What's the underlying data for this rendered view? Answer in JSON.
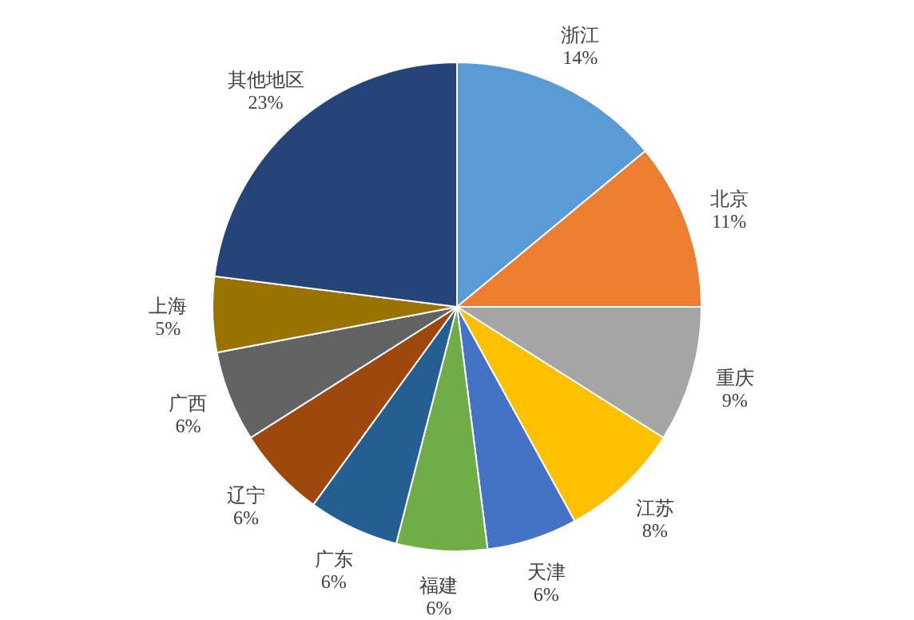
{
  "chart_data": {
    "type": "pie",
    "categories": [
      "浙江",
      "北京",
      "重庆",
      "江苏",
      "天津",
      "福建",
      "广东",
      "辽宁",
      "广西",
      "上海",
      "其他地区"
    ],
    "values": [
      14,
      11,
      9,
      8,
      6,
      6,
      6,
      6,
      6,
      5,
      23
    ],
    "colors": [
      "#5b9bd5",
      "#ed7d31",
      "#a5a5a5",
      "#ffc000",
      "#4472c4",
      "#70ad47",
      "#255e91",
      "#9e480e",
      "#636363",
      "#997300",
      "#264478"
    ],
    "value_labels": [
      "14%",
      "11%",
      "9%",
      "8%",
      "6%",
      "6%",
      "6%",
      "6%",
      "6%",
      "5%",
      "23%"
    ]
  }
}
